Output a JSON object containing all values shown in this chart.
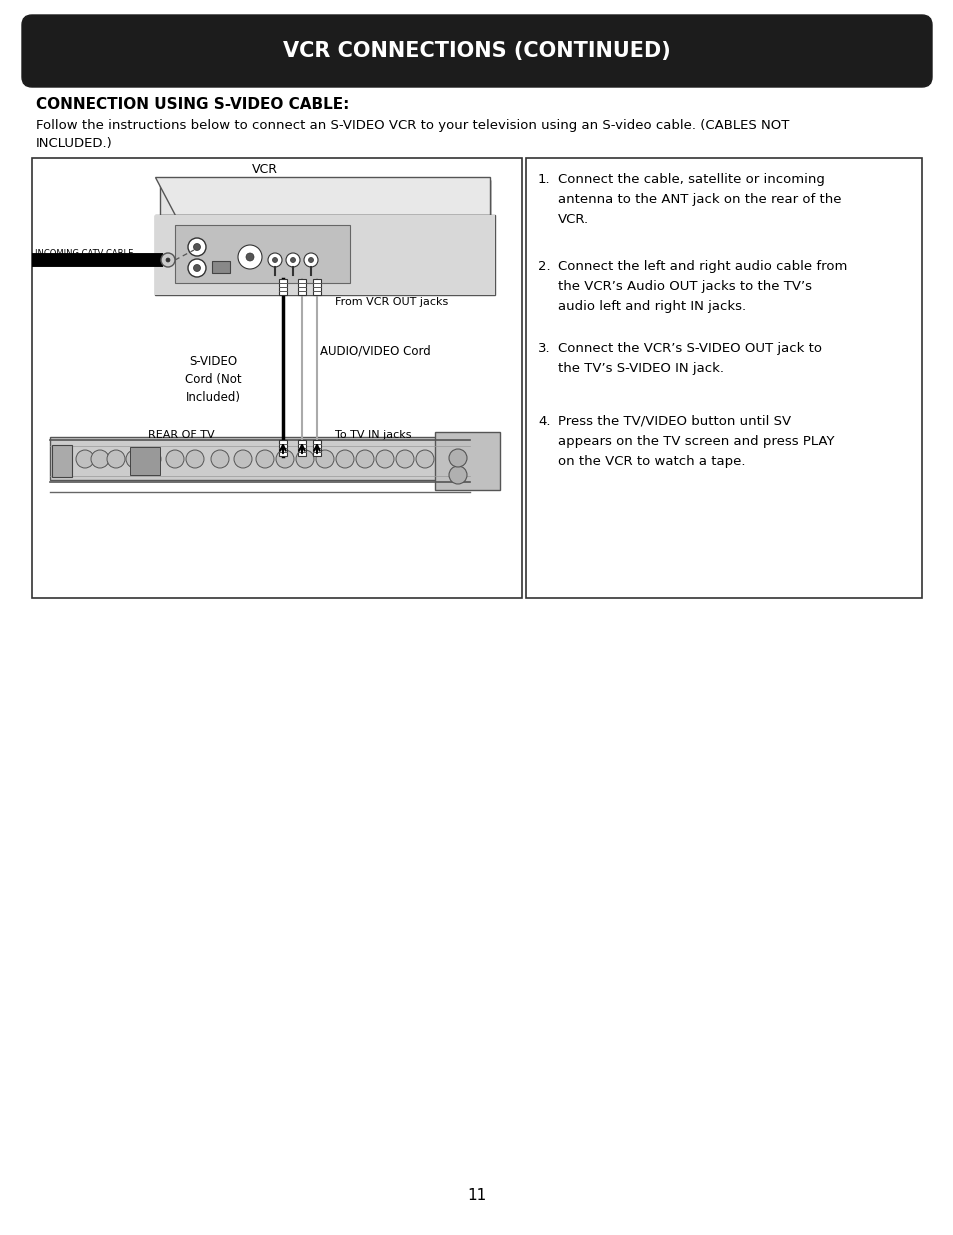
{
  "title": "VCR CONNECTIONS (CONTINUED)",
  "section_title": "CONNECTION USING S-VIDEO CABLE:",
  "body_line1": "Follow the instructions below to connect an S-VIDEO VCR to your television using an S-video cable. (CABLES NOT",
  "body_line2": "INCLUDED.)",
  "instr": [
    [
      "1.",
      "Connect the cable, satellite or incoming\nantenna to the ANT jack on the rear of the\nVCR."
    ],
    [
      "2.",
      "Connect the left and right audio cable from\nthe VCR’s Audio OUT jacks to the TV’s\naudio left and right IN jacks."
    ],
    [
      "3.",
      "Connect the VCR’s S-VIDEO OUT jack to\nthe TV’s S-VIDEO IN jack."
    ],
    [
      "4.",
      "Press the TV/VIDEO button until SV\nappears on the TV screen and press PLAY\non the VCR to watch a tape."
    ]
  ],
  "label_vcr": "VCR",
  "label_incoming": "INCOMING CATV CABLE",
  "label_from_vcr": "From VCR OUT jacks",
  "label_svideo": "S-VIDEO\nCord (Not\nIncluded)",
  "label_audio": "AUDIO/VIDEO Cord",
  "label_rear_tv": "REAR OF TV",
  "label_to_tv": "To TV IN jacks",
  "page_number": "11",
  "bg_color": "#ffffff",
  "title_bg": "#1c1c1c",
  "title_fg": "#ffffff"
}
